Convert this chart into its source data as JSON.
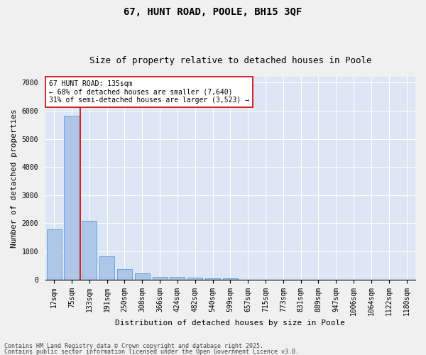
{
  "title1": "67, HUNT ROAD, POOLE, BH15 3QF",
  "title2": "Size of property relative to detached houses in Poole",
  "xlabel": "Distribution of detached houses by size in Poole",
  "ylabel": "Number of detached properties",
  "categories": [
    "17sqm",
    "75sqm",
    "133sqm",
    "191sqm",
    "250sqm",
    "308sqm",
    "366sqm",
    "424sqm",
    "482sqm",
    "540sqm",
    "599sqm",
    "657sqm",
    "715sqm",
    "773sqm",
    "831sqm",
    "889sqm",
    "947sqm",
    "1006sqm",
    "1064sqm",
    "1122sqm",
    "1180sqm"
  ],
  "values": [
    1770,
    5820,
    2080,
    820,
    370,
    215,
    100,
    80,
    60,
    40,
    30,
    0,
    0,
    0,
    0,
    0,
    0,
    0,
    0,
    0,
    0
  ],
  "bar_color": "#aec6e8",
  "bar_edgecolor": "#5b9bd5",
  "vline_color": "#cc0000",
  "annotation_text": "67 HUNT ROAD: 135sqm\n← 68% of detached houses are smaller (7,640)\n31% of semi-detached houses are larger (3,523) →",
  "annotation_box_color": "#ffffff",
  "annotation_box_edgecolor": "#cc0000",
  "ylim": [
    0,
    7200
  ],
  "yticks": [
    0,
    1000,
    2000,
    3000,
    4000,
    5000,
    6000,
    7000
  ],
  "bg_color": "#dce6f5",
  "fig_color": "#f0f0f0",
  "footer1": "Contains HM Land Registry data © Crown copyright and database right 2025.",
  "footer2": "Contains public sector information licensed under the Open Government Licence v3.0.",
  "title_fontsize": 10,
  "subtitle_fontsize": 9,
  "tick_fontsize": 7,
  "label_fontsize": 8,
  "annotation_fontsize": 7,
  "footer_fontsize": 6
}
